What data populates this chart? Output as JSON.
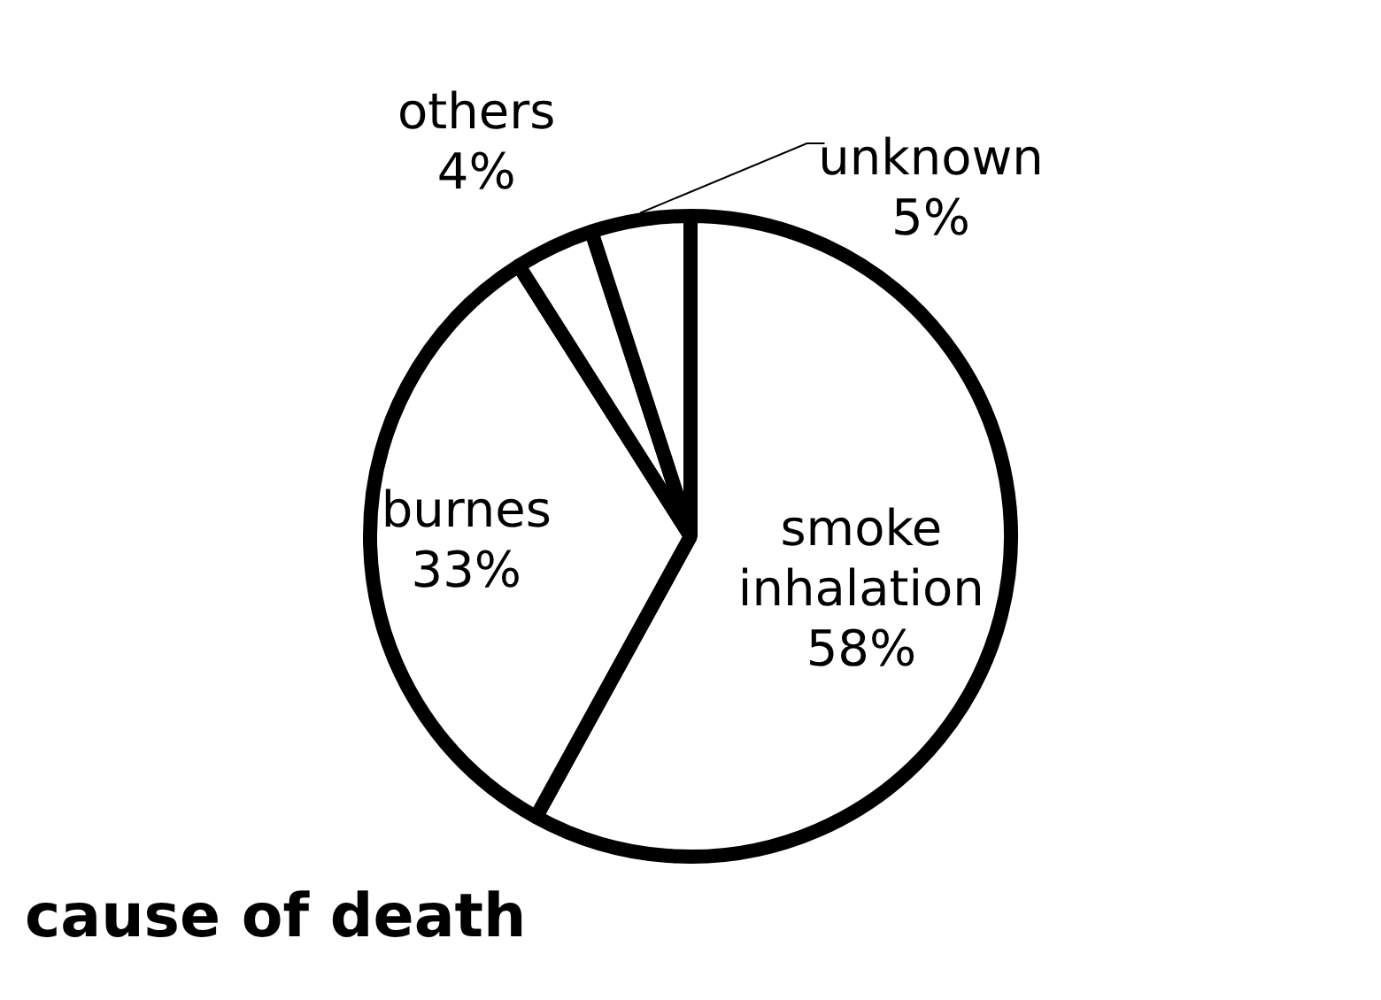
{
  "chart_data": {
    "type": "pie",
    "title": "cause of death",
    "categories": [
      "smoke inhalation",
      "burnes",
      "others",
      "unknown"
    ],
    "values": [
      58,
      33,
      4,
      5
    ],
    "colors": [
      "#ffffff",
      "#ffffff",
      "#ffffff",
      "#ffffff"
    ],
    "value_labels": [
      "58%",
      "33%",
      "4%",
      "5%"
    ],
    "legend": false
  }
}
